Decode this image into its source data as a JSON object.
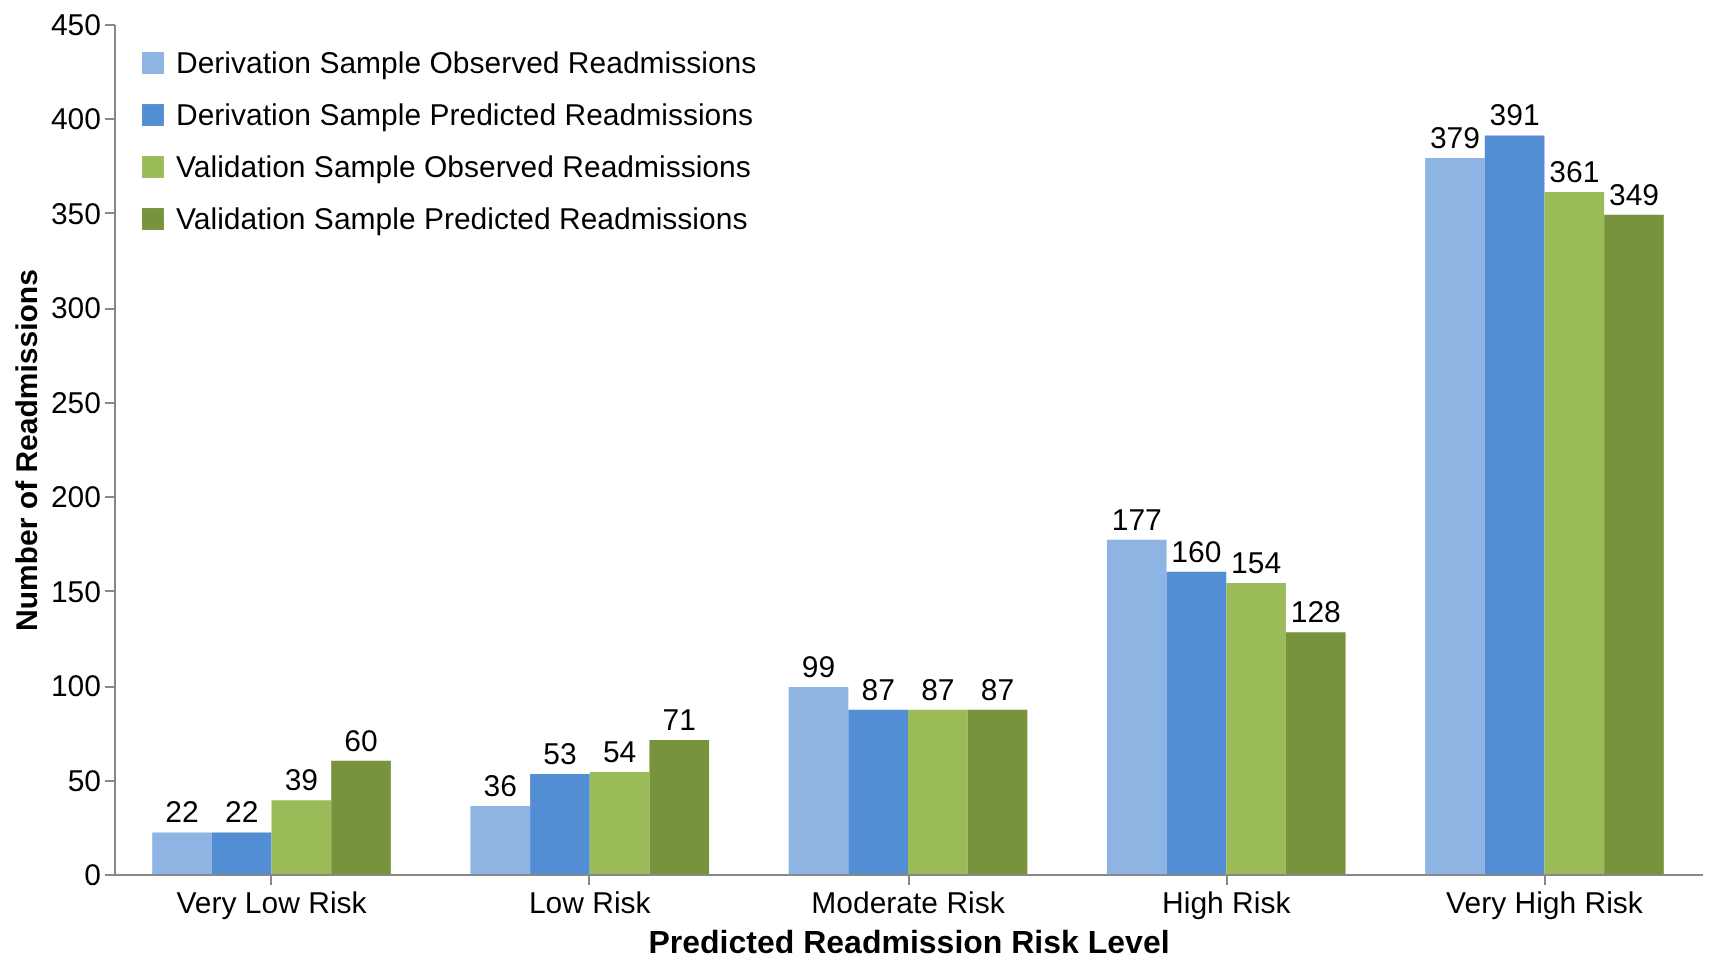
{
  "chart_data": {
    "type": "bar",
    "xlabel": "Predicted Readmission Risk Level",
    "ylabel": "Number of Readmissions",
    "categories": [
      "Very Low Risk",
      "Low Risk",
      "Moderate Risk",
      "High Risk",
      "Very High Risk"
    ],
    "series": [
      {
        "name": "Derivation Sample Observed Readmissions",
        "color": "#8db4e3",
        "values": [
          22,
          36,
          99,
          177,
          379
        ]
      },
      {
        "name": "Derivation Sample Predicted Readmissions",
        "color": "#538ed5",
        "values": [
          22,
          53,
          87,
          160,
          391
        ]
      },
      {
        "name": "Validation Sample Observed Readmissions",
        "color": "#9bbb59",
        "values": [
          39,
          54,
          87,
          154,
          361
        ]
      },
      {
        "name": "Validation Sample Predicted Readmissions",
        "color": "#77933c",
        "values": [
          60,
          71,
          87,
          128,
          349
        ]
      }
    ],
    "ylim": [
      0,
      450
    ],
    "yticks": [
      0,
      50,
      100,
      150,
      200,
      250,
      300,
      350,
      400,
      450
    ],
    "data_labels": true,
    "grid": false,
    "legend": "top left"
  }
}
